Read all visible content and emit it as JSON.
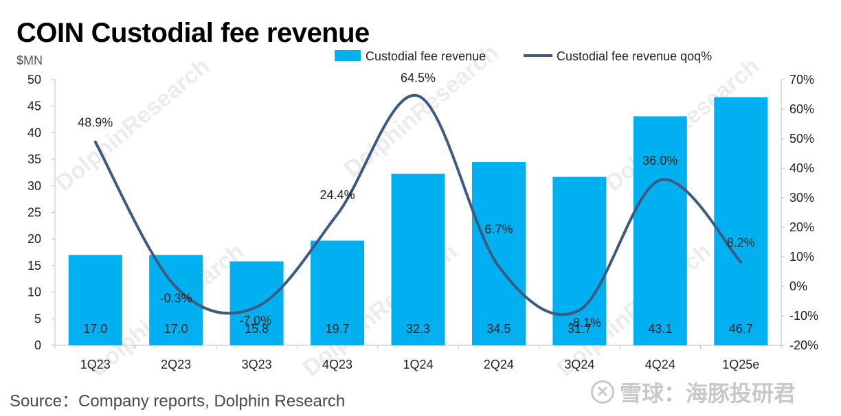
{
  "title": "COIN Custodial fee revenue",
  "source": "Source：Company reports, Dolphin Research",
  "brand": "雪球：海豚投研君",
  "chart_data": {
    "type": "bar",
    "title": "COIN Custodial fee revenue",
    "categories": [
      "1Q23",
      "2Q23",
      "3Q23",
      "4Q23",
      "1Q24",
      "2Q24",
      "3Q24",
      "4Q24",
      "1Q25e"
    ],
    "series": [
      {
        "name": "Custodial fee revenue",
        "type": "bar",
        "axis": "left",
        "color": "#00b0f0",
        "values": [
          17.0,
          17.0,
          15.8,
          19.7,
          32.3,
          34.5,
          31.7,
          43.1,
          46.7
        ],
        "labels": [
          "17.0",
          "17.0",
          "15.8",
          "19.7",
          "32.3",
          "34.5",
          "31.7",
          "43.1",
          "46.7"
        ]
      },
      {
        "name": "Custodial fee revenue qoq%",
        "type": "line",
        "smooth": true,
        "axis": "right",
        "color": "#3d5a80",
        "values": [
          48.9,
          -0.3,
          -7.0,
          24.4,
          64.5,
          6.7,
          -8.1,
          36.0,
          8.2
        ],
        "labels": [
          "48.9%",
          "-0.3%",
          "-7.0%",
          "24.4%",
          "64.5%",
          "6.7%",
          "-8.1%",
          "36.0%",
          "8.2%"
        ]
      }
    ],
    "y_left": {
      "unit_label": "$MN",
      "ylim": [
        0,
        50
      ],
      "ticks": [
        0,
        5,
        10,
        15,
        20,
        25,
        30,
        35,
        40,
        45,
        50
      ],
      "tick_labels": [
        "0",
        "5",
        "10",
        "15",
        "20",
        "25",
        "30",
        "35",
        "40",
        "45",
        "50"
      ]
    },
    "y_right": {
      "ylim": [
        -20,
        70
      ],
      "ticks": [
        -20,
        -10,
        0,
        10,
        20,
        30,
        40,
        50,
        60,
        70
      ],
      "tick_labels": [
        "-20%",
        "-10%",
        "0%",
        "10%",
        "20%",
        "30%",
        "40%",
        "50%",
        "60%",
        "70%"
      ]
    },
    "legend": "top",
    "grid": false
  }
}
